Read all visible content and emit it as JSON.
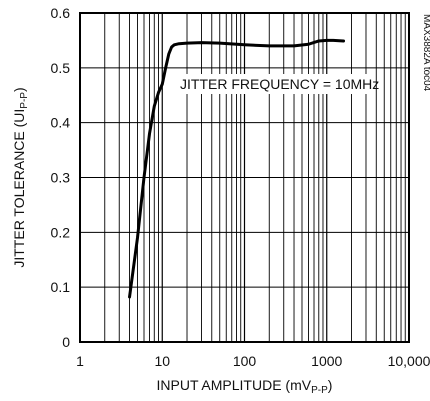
{
  "chart_data": {
    "type": "line",
    "title": "",
    "xlabel_main": "INPUT AMPLITUDE (mV",
    "xlabel_sub": "P-P",
    "xlabel_end": ")",
    "ylabel_main": "JITTER TOLERANCE (UI",
    "ylabel_sub": "P-P",
    "ylabel_end": ")",
    "x_scale": "log",
    "xlim": [
      1,
      10000
    ],
    "ylim": [
      0,
      0.6
    ],
    "grid": true,
    "x_ticks": [
      {
        "value": 1,
        "label": "1"
      },
      {
        "value": 10,
        "label": "10"
      },
      {
        "value": 100,
        "label": "100"
      },
      {
        "value": 1000,
        "label": "1000"
      },
      {
        "value": 10000,
        "label": "10,000"
      }
    ],
    "y_ticks": [
      {
        "value": 0,
        "label": "0"
      },
      {
        "value": 0.1,
        "label": "0.1"
      },
      {
        "value": 0.2,
        "label": "0.2"
      },
      {
        "value": 0.3,
        "label": "0.3"
      },
      {
        "value": 0.4,
        "label": "0.4"
      },
      {
        "value": 0.5,
        "label": "0.5"
      },
      {
        "value": 0.6,
        "label": "0.6"
      }
    ],
    "annotation": "JITTER FREQUENCY = 10MHz",
    "figure_code": "MAX3882A toc04",
    "series": [
      {
        "x": [
          4,
          5,
          6,
          7,
          8,
          9,
          10,
          11,
          12,
          13,
          14,
          16,
          20,
          30,
          50,
          100,
          200,
          400,
          600,
          800,
          1000,
          1200,
          1600
        ],
        "y": [
          0.082,
          0.19,
          0.3,
          0.38,
          0.43,
          0.455,
          0.47,
          0.5,
          0.525,
          0.538,
          0.542,
          0.544,
          0.545,
          0.546,
          0.545,
          0.542,
          0.54,
          0.54,
          0.543,
          0.549,
          0.55,
          0.55,
          0.549
        ],
        "color": "#000000"
      }
    ]
  }
}
